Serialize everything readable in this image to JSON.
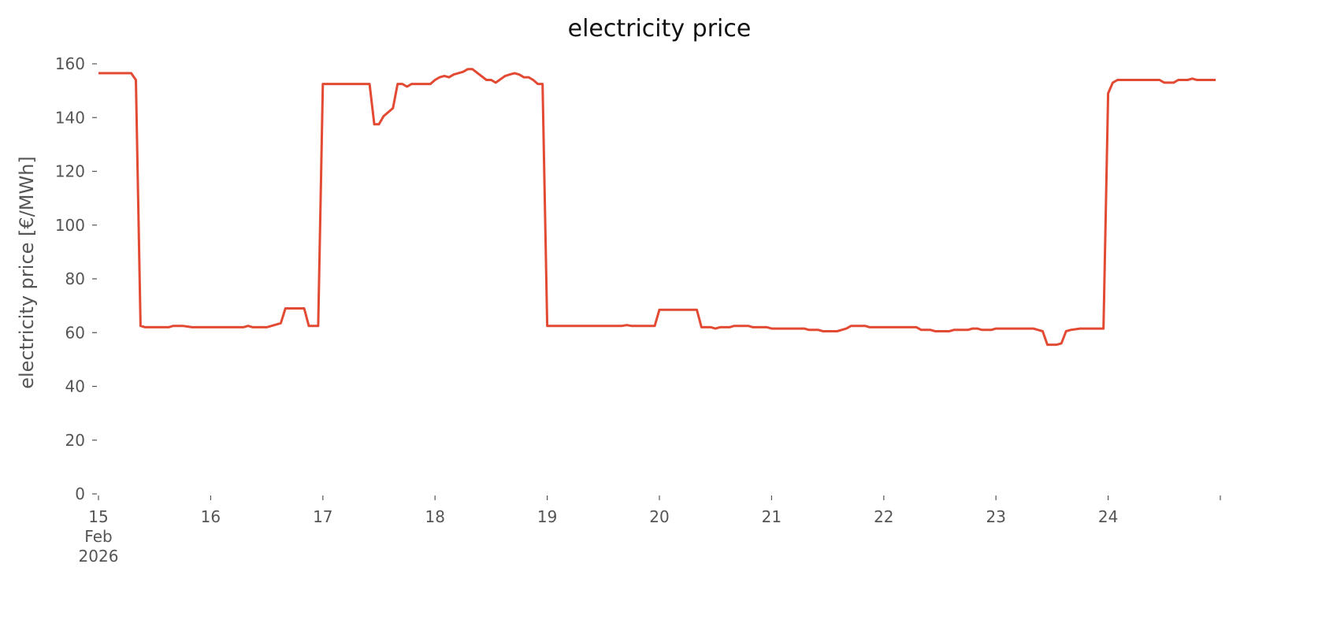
{
  "chart_data": {
    "type": "line",
    "title": "electricity price",
    "xlabel": "",
    "ylabel": "electricity price [€/MWh]",
    "ylim": [
      0,
      167
    ],
    "xlim": [
      "2026-02-15T00:00",
      "2026-02-25T00:00"
    ],
    "grid": false,
    "color": "#e24a33",
    "yticks": [
      0,
      20,
      40,
      60,
      80,
      100,
      120,
      140,
      160
    ],
    "xticks": [
      {
        "date": "2026-02-15",
        "label": [
          "15",
          "Feb",
          "2026"
        ]
      },
      {
        "date": "2026-02-16",
        "label": [
          "16"
        ]
      },
      {
        "date": "2026-02-17",
        "label": [
          "17"
        ]
      },
      {
        "date": "2026-02-18",
        "label": [
          "18"
        ]
      },
      {
        "date": "2026-02-19",
        "label": [
          "19"
        ]
      },
      {
        "date": "2026-02-20",
        "label": [
          "20"
        ]
      },
      {
        "date": "2026-02-21",
        "label": [
          "21"
        ]
      },
      {
        "date": "2026-02-22",
        "label": [
          "22"
        ]
      },
      {
        "date": "2026-02-23",
        "label": [
          "23"
        ]
      },
      {
        "date": "2026-02-24",
        "label": [
          "24"
        ]
      },
      {
        "date": "2026-02-25",
        "label": []
      }
    ],
    "series": [
      {
        "points": [
          [
            "2026-02-15T00:00",
            156.5
          ],
          [
            "2026-02-15T07:00",
            156.5
          ],
          [
            "2026-02-15T08:00",
            154
          ],
          [
            "2026-02-15T09:00",
            62.5
          ],
          [
            "2026-02-15T10:00",
            62
          ],
          [
            "2026-02-15T15:00",
            62
          ],
          [
            "2026-02-15T16:00",
            62.5
          ],
          [
            "2026-02-15T18:00",
            62.5
          ],
          [
            "2026-02-15T20:00",
            62
          ],
          [
            "2026-02-16T07:00",
            62
          ],
          [
            "2026-02-16T08:00",
            62.5
          ],
          [
            "2026-02-16T09:00",
            62
          ],
          [
            "2026-02-16T12:00",
            62
          ],
          [
            "2026-02-16T15:00",
            63.5
          ],
          [
            "2026-02-16T16:00",
            69
          ],
          [
            "2026-02-16T17:00",
            69
          ],
          [
            "2026-02-16T20:00",
            69
          ],
          [
            "2026-02-16T21:00",
            62.5
          ],
          [
            "2026-02-16T23:00",
            62.5
          ],
          [
            "2026-02-17T00:00",
            152.5
          ],
          [
            "2026-02-17T10:00",
            152.5
          ],
          [
            "2026-02-17T11:00",
            137.5
          ],
          [
            "2026-02-17T12:00",
            137.5
          ],
          [
            "2026-02-17T13:00",
            140.5
          ],
          [
            "2026-02-17T14:00",
            142
          ],
          [
            "2026-02-17T15:00",
            143.5
          ],
          [
            "2026-02-17T16:00",
            152.5
          ],
          [
            "2026-02-17T17:00",
            152.5
          ],
          [
            "2026-02-17T18:00",
            151.5
          ],
          [
            "2026-02-17T19:00",
            152.5
          ],
          [
            "2026-02-17T23:00",
            152.5
          ],
          [
            "2026-02-18T00:00",
            154
          ],
          [
            "2026-02-18T01:00",
            155
          ],
          [
            "2026-02-18T02:00",
            155.5
          ],
          [
            "2026-02-18T03:00",
            155
          ],
          [
            "2026-02-18T04:00",
            156
          ],
          [
            "2026-02-18T06:00",
            157
          ],
          [
            "2026-02-18T07:00",
            158
          ],
          [
            "2026-02-18T08:00",
            158
          ],
          [
            "2026-02-18T11:00",
            154
          ],
          [
            "2026-02-18T12:00",
            154
          ],
          [
            "2026-02-18T13:00",
            153
          ],
          [
            "2026-02-18T15:00",
            155.5
          ],
          [
            "2026-02-18T16:00",
            156
          ],
          [
            "2026-02-18T17:00",
            156.5
          ],
          [
            "2026-02-18T18:00",
            156
          ],
          [
            "2026-02-18T19:00",
            155
          ],
          [
            "2026-02-18T20:00",
            155
          ],
          [
            "2026-02-18T21:00",
            154
          ],
          [
            "2026-02-18T22:00",
            152.5
          ],
          [
            "2026-02-18T23:00",
            152.5
          ],
          [
            "2026-02-19T00:00",
            62.5
          ],
          [
            "2026-02-19T16:00",
            62.5
          ],
          [
            "2026-02-19T17:00",
            62.8
          ],
          [
            "2026-02-19T18:00",
            62.5
          ],
          [
            "2026-02-19T23:00",
            62.5
          ],
          [
            "2026-02-20T00:00",
            68.5
          ],
          [
            "2026-02-20T08:00",
            68.5
          ],
          [
            "2026-02-20T09:00",
            62
          ],
          [
            "2026-02-20T11:00",
            62
          ],
          [
            "2026-02-20T12:00",
            61.5
          ],
          [
            "2026-02-20T13:00",
            62
          ],
          [
            "2026-02-20T15:00",
            62
          ],
          [
            "2026-02-20T16:00",
            62.5
          ],
          [
            "2026-02-20T19:00",
            62.5
          ],
          [
            "2026-02-20T20:00",
            62
          ],
          [
            "2026-02-20T23:00",
            62
          ],
          [
            "2026-02-21T00:00",
            61.5
          ],
          [
            "2026-02-21T07:00",
            61.5
          ],
          [
            "2026-02-21T08:00",
            61
          ],
          [
            "2026-02-21T10:00",
            61
          ],
          [
            "2026-02-21T11:00",
            60.5
          ],
          [
            "2026-02-21T14:00",
            60.5
          ],
          [
            "2026-02-21T15:00",
            61
          ],
          [
            "2026-02-21T16:00",
            61.5
          ],
          [
            "2026-02-21T17:00",
            62.5
          ],
          [
            "2026-02-21T20:00",
            62.5
          ],
          [
            "2026-02-21T21:00",
            62
          ],
          [
            "2026-02-22T07:00",
            62
          ],
          [
            "2026-02-22T08:00",
            61
          ],
          [
            "2026-02-22T10:00",
            61
          ],
          [
            "2026-02-22T11:00",
            60.5
          ],
          [
            "2026-02-22T14:00",
            60.5
          ],
          [
            "2026-02-22T15:00",
            61
          ],
          [
            "2026-02-22T18:00",
            61
          ],
          [
            "2026-02-22T19:00",
            61.5
          ],
          [
            "2026-02-22T20:00",
            61.5
          ],
          [
            "2026-02-22T21:00",
            61
          ],
          [
            "2026-02-22T23:00",
            61
          ],
          [
            "2026-02-23T00:00",
            61.5
          ],
          [
            "2026-02-23T08:00",
            61.5
          ],
          [
            "2026-02-23T09:00",
            61
          ],
          [
            "2026-02-23T10:00",
            60.5
          ],
          [
            "2026-02-23T11:00",
            55.5
          ],
          [
            "2026-02-23T13:00",
            55.5
          ],
          [
            "2026-02-23T14:00",
            56
          ],
          [
            "2026-02-23T15:00",
            60.5
          ],
          [
            "2026-02-23T16:00",
            61
          ],
          [
            "2026-02-23T18:00",
            61.5
          ],
          [
            "2026-02-23T23:00",
            61.5
          ],
          [
            "2026-02-24T00:00",
            149
          ],
          [
            "2026-02-24T01:00",
            153
          ],
          [
            "2026-02-24T02:00",
            154
          ],
          [
            "2026-02-24T11:00",
            154
          ],
          [
            "2026-02-24T12:00",
            153
          ],
          [
            "2026-02-24T14:00",
            153
          ],
          [
            "2026-02-24T15:00",
            154
          ],
          [
            "2026-02-24T17:00",
            154
          ],
          [
            "2026-02-24T18:00",
            154.5
          ],
          [
            "2026-02-24T19:00",
            154
          ],
          [
            "2026-02-24T23:00",
            154
          ]
        ]
      }
    ]
  }
}
